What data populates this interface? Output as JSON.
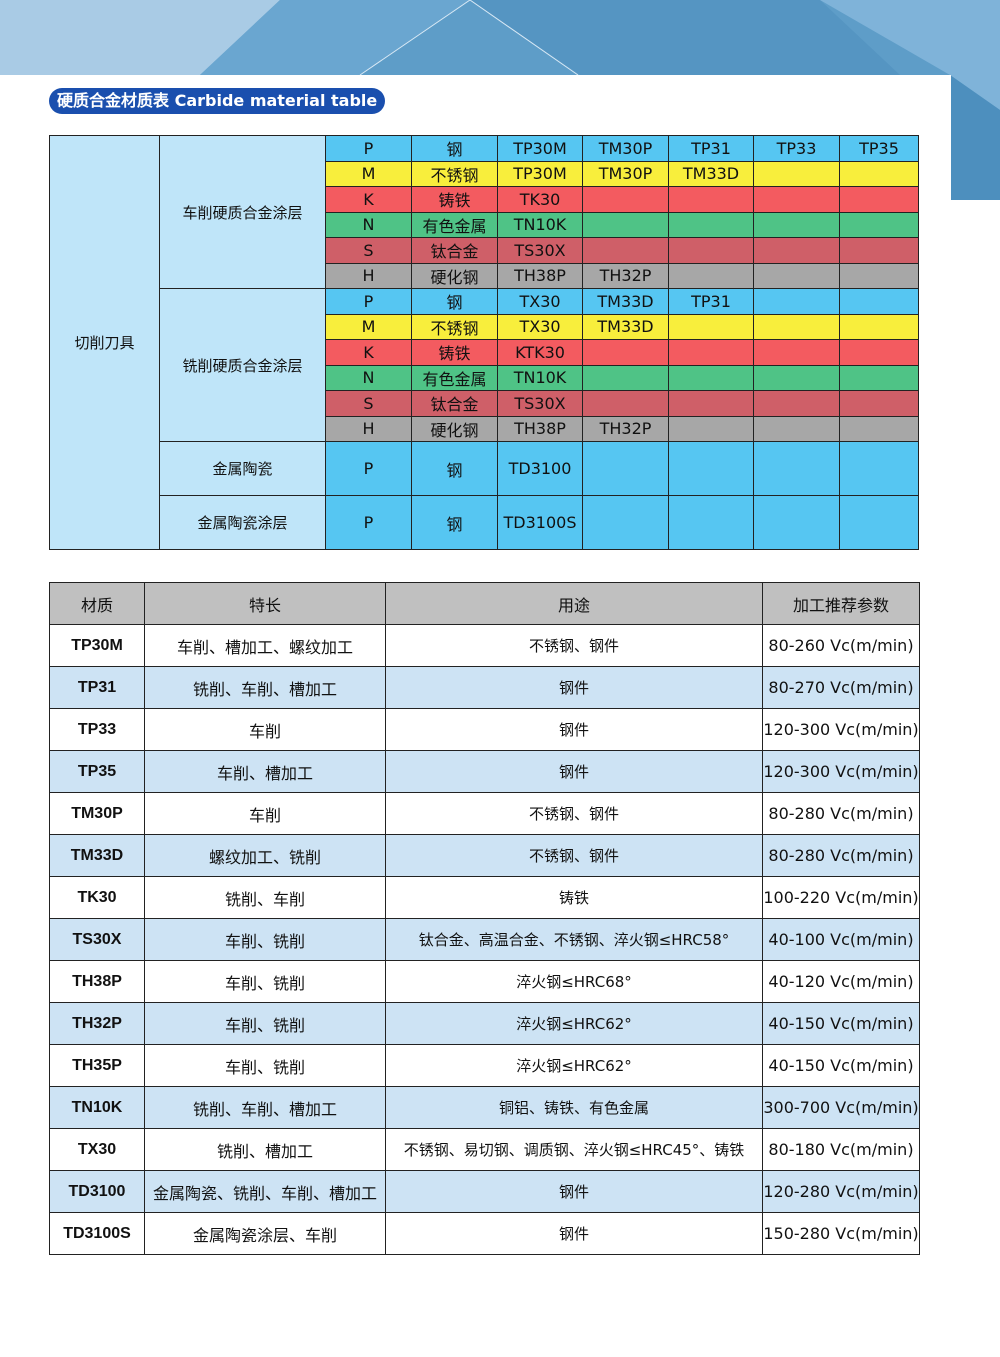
{
  "title": "硬质合金材质表 Carbide material table",
  "colors": {
    "P": "#56c6f2",
    "M": "#f8ee3c",
    "K": "#f35b60",
    "N": "#4fc386",
    "S": "#cf5f68",
    "H": "#a7a7a7",
    "group_bg": "#bfe5f9",
    "header_bg": "#c0c0c0",
    "alt_row_bg": "#cde3f4",
    "title_pill": "#1a4fae"
  },
  "grade_table": {
    "category": "切削刀具",
    "groups": [
      {
        "name": "车削硬质合金涂层",
        "rows": [
          {
            "code": "P",
            "material": "钢",
            "grades": [
              "TP30M",
              "TM30P",
              "TP31",
              "TP33",
              "TP35"
            ]
          },
          {
            "code": "M",
            "material": "不锈钢",
            "grades": [
              "TP30M",
              "TM30P",
              "TM33D",
              "",
              ""
            ]
          },
          {
            "code": "K",
            "material": "铸铁",
            "grades": [
              "TK30",
              "",
              "",
              "",
              ""
            ]
          },
          {
            "code": "N",
            "material": "有色金属",
            "grades": [
              "TN10K",
              "",
              "",
              "",
              ""
            ]
          },
          {
            "code": "S",
            "material": "钛合金",
            "grades": [
              "TS30X",
              "",
              "",
              "",
              ""
            ]
          },
          {
            "code": "H",
            "material": "硬化钢",
            "grades": [
              "TH38P",
              "TH32P",
              "",
              "",
              ""
            ]
          }
        ]
      },
      {
        "name": "铣削硬质合金涂层",
        "rows": [
          {
            "code": "P",
            "material": "钢",
            "grades": [
              "TX30",
              "TM33D",
              "TP31",
              "",
              ""
            ]
          },
          {
            "code": "M",
            "material": "不锈钢",
            "grades": [
              "TX30",
              "TM33D",
              "",
              "",
              ""
            ]
          },
          {
            "code": "K",
            "material": "铸铁",
            "grades": [
              "KTK30",
              "",
              "",
              "",
              ""
            ]
          },
          {
            "code": "N",
            "material": "有色金属",
            "grades": [
              "TN10K",
              "",
              "",
              "",
              ""
            ]
          },
          {
            "code": "S",
            "material": "钛合金",
            "grades": [
              "TS30X",
              "",
              "",
              "",
              ""
            ]
          },
          {
            "code": "H",
            "material": "硬化钢",
            "grades": [
              "TH38P",
              "TH32P",
              "",
              "",
              ""
            ]
          }
        ]
      },
      {
        "name": "金属陶瓷",
        "rows": [
          {
            "code": "P",
            "material": "钢",
            "grades": [
              "TD3100",
              "",
              "",
              "",
              ""
            ]
          }
        ]
      },
      {
        "name": "金属陶瓷涂层",
        "rows": [
          {
            "code": "P",
            "material": "钢",
            "grades": [
              "TD3100S",
              "",
              "",
              "",
              ""
            ]
          }
        ]
      }
    ]
  },
  "spec_table": {
    "headers": [
      "材质",
      "特长",
      "用途",
      "加工推荐参数"
    ],
    "rows": [
      [
        "TP30M",
        "车削、槽加工、螺纹加工",
        "不锈钢、钢件",
        "80-260 Vc(m/min)"
      ],
      [
        "TP31",
        "铣削、车削、槽加工",
        "钢件",
        "80-270 Vc(m/min)"
      ],
      [
        "TP33",
        "车削",
        "钢件",
        "120-300 Vc(m/min)"
      ],
      [
        "TP35",
        "车削、槽加工",
        "钢件",
        "120-300 Vc(m/min)"
      ],
      [
        "TM30P",
        "车削",
        "不锈钢、钢件",
        "80-280 Vc(m/min)"
      ],
      [
        "TM33D",
        "螺纹加工、铣削",
        "不锈钢、钢件",
        "80-280 Vc(m/min)"
      ],
      [
        "TK30",
        "铣削、车削",
        "铸铁",
        "100-220 Vc(m/min)"
      ],
      [
        "TS30X",
        "车削、铣削",
        "钛合金、高温合金、不锈钢、淬火钢≤HRC58°",
        "40-100 Vc(m/min)"
      ],
      [
        "TH38P",
        "车削、铣削",
        "淬火钢≤HRC68°",
        "40-120 Vc(m/min)"
      ],
      [
        "TH32P",
        "车削、铣削",
        "淬火钢≤HRC62°",
        "40-150 Vc(m/min)"
      ],
      [
        "TH35P",
        "车削、铣削",
        "淬火钢≤HRC62°",
        "40-150 Vc(m/min)"
      ],
      [
        "TN10K",
        "铣削、车削、槽加工",
        "铜铝、铸铁、有色金属",
        "300-700 Vc(m/min)"
      ],
      [
        "TX30",
        "铣削、槽加工",
        "不锈钢、易切钢、调质钢、淬火钢≤HRC45°、铸铁",
        "80-180 Vc(m/min)"
      ],
      [
        "TD3100",
        "金属陶瓷、铣削、车削、槽加工",
        "钢件",
        "120-280 Vc(m/min)"
      ],
      [
        "TD3100S",
        "金属陶瓷涂层、车削",
        "钢件",
        "150-280 Vc(m/min)"
      ]
    ]
  }
}
